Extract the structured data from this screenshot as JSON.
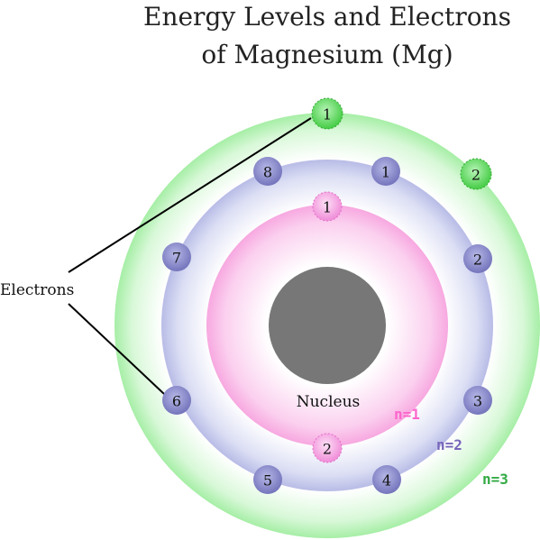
{
  "title": {
    "line1": "Energy Levels and Electrons",
    "line2": "of Magnesium (Mg)"
  },
  "labels": {
    "electrons": "Electrons",
    "nucleus": "Nucleus"
  },
  "shells": [
    {
      "level": "n=1",
      "color": "#ff66cc",
      "electrons": [
        "1",
        "2"
      ]
    },
    {
      "level": "n=2",
      "color": "#7766bb",
      "electrons": [
        "1",
        "2",
        "3",
        "4",
        "5",
        "6",
        "7",
        "8"
      ]
    },
    {
      "level": "n=3",
      "color": "#33aa44",
      "electrons": [
        "1",
        "2"
      ]
    }
  ],
  "colors": {
    "nucleus": "#777777",
    "shell1_ring": "#f7a8e0",
    "shell2_ring": "#b8bce6",
    "shell3_ring": "#a6eea6",
    "electron1": "#f6a4e4",
    "electron2": "#8888cc",
    "electron3": "#66dd66"
  }
}
